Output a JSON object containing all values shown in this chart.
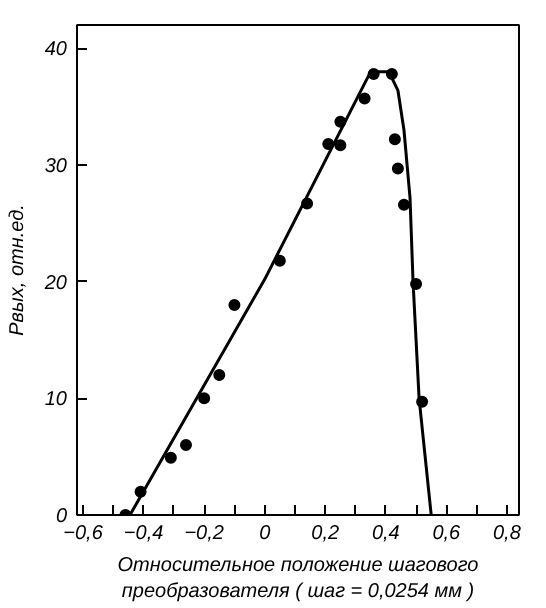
{
  "chart_data": {
    "type": "scatter",
    "xlabel": "Относительное положение шагового\nпреобразователя ( шаг = 0,0254 мм )",
    "ylabel": "Pвых, отн.ед.",
    "series": [
      {
        "color": "#000000",
        "marker": "circle",
        "x": [
          -0.46,
          -0.41,
          -0.31,
          -0.26,
          -0.2,
          -0.15,
          -0.1,
          0.05,
          0.14,
          0.21,
          0.25,
          0.25,
          0.33,
          0.36,
          0.42,
          0.43,
          0.44,
          0.46,
          0.5,
          0.52
        ],
        "values": [
          0,
          2,
          4.9,
          6,
          10,
          12,
          18,
          21.8,
          26.7,
          31.8,
          31.7,
          33.7,
          35.7,
          37.8,
          37.8,
          32.2,
          29.7,
          26.6,
          19.8,
          9.7
        ]
      },
      {
        "type": "line",
        "color": "#000000",
        "marker": "none",
        "line_style": "solid",
        "x": [
          -0.445,
          0,
          0.35,
          0.41,
          0.44,
          0.46,
          0.48,
          0.49,
          0.51,
          0.55
        ],
        "values": [
          0,
          20.2,
          38,
          38,
          36.4,
          33,
          27.2,
          20,
          10,
          0
        ]
      }
    ],
    "xlim": [
      -0.62,
      0.84
    ],
    "ylim": [
      0,
      42
    ],
    "xticks": [
      {
        "value": -0.6,
        "label": "−0,6"
      },
      {
        "value": -0.5,
        "label": null
      },
      {
        "value": -0.4,
        "label": "−0,4"
      },
      {
        "value": -0.3,
        "label": null
      },
      {
        "value": -0.2,
        "label": "−0,2"
      },
      {
        "value": -0.1,
        "label": null
      },
      {
        "value": 0,
        "label": "0"
      },
      {
        "value": 0.1,
        "label": null
      },
      {
        "value": 0.2,
        "label": "0,2"
      },
      {
        "value": 0.3,
        "label": null
      },
      {
        "value": 0.4,
        "label": "0,4"
      },
      {
        "value": 0.5,
        "label": null
      },
      {
        "value": 0.6,
        "label": "0,6"
      },
      {
        "value": 0.7,
        "label": null
      },
      {
        "value": 0.8,
        "label": "0,8"
      }
    ],
    "yticks": [
      0,
      10,
      20,
      30,
      40
    ],
    "grid": false
  }
}
